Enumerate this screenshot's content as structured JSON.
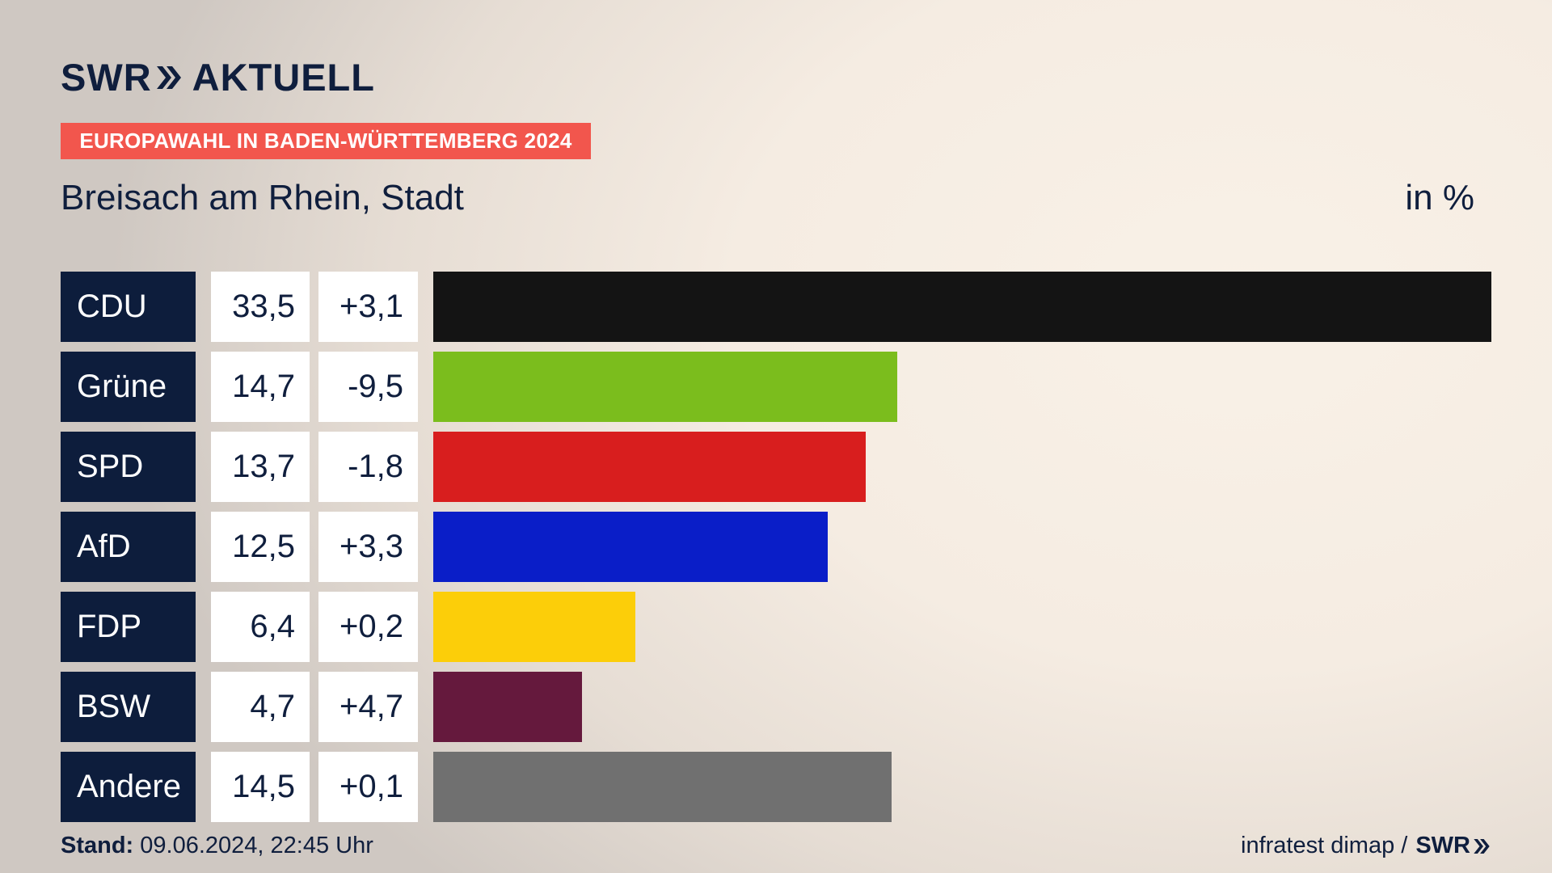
{
  "header": {
    "logo_swr": "SWR",
    "logo_aktuell": "AKTUELL",
    "badge": "EUROPAWAHL IN BADEN-WÜRTTEMBERG 2024",
    "subtitle": "Breisach am Rhein, Stadt",
    "unit": "in %"
  },
  "colors": {
    "navy": "#0d1d3c",
    "badge": "#f2564d"
  },
  "chart_data": {
    "type": "bar",
    "orientation": "horizontal",
    "title": "Breisach am Rhein, Stadt",
    "unit": "in %",
    "max_value": 33.5,
    "rows": [
      {
        "party": "CDU",
        "value": 33.5,
        "value_label": "33,5",
        "diff_label": "+3,1",
        "color": "#141414"
      },
      {
        "party": "Grüne",
        "value": 14.7,
        "value_label": "14,7",
        "diff_label": "-9,5",
        "color": "#7bbd1d"
      },
      {
        "party": "SPD",
        "value": 13.7,
        "value_label": "13,7",
        "diff_label": "-1,8",
        "color": "#d81e1e"
      },
      {
        "party": "AfD",
        "value": 12.5,
        "value_label": "12,5",
        "diff_label": "+3,3",
        "color": "#0a1ec8"
      },
      {
        "party": "FDP",
        "value": 6.4,
        "value_label": "6,4",
        "diff_label": "+0,2",
        "color": "#fcce09"
      },
      {
        "party": "BSW",
        "value": 4.7,
        "value_label": "4,7",
        "diff_label": "+4,7",
        "color": "#65193d"
      },
      {
        "party": "Andere",
        "value": 14.5,
        "value_label": "14,5",
        "diff_label": "+0,1",
        "color": "#707070"
      }
    ]
  },
  "footer": {
    "stand_label": "Stand:",
    "stand_value": " 09.06.2024, 22:45 Uhr",
    "source": "infratest dimap /",
    "source_logo": "SWR"
  }
}
